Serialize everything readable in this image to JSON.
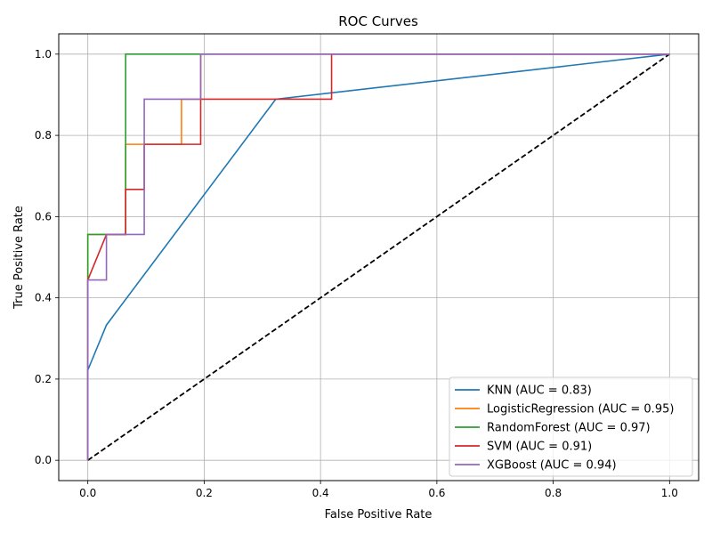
{
  "chart_data": {
    "type": "line",
    "title": "ROC Curves",
    "xlabel": "False Positive Rate",
    "ylabel": "True Positive Rate",
    "xlim": [
      -0.05,
      1.05
    ],
    "ylim": [
      -0.05,
      1.05
    ],
    "xticks": [
      0.0,
      0.2,
      0.4,
      0.6,
      0.8,
      1.0
    ],
    "yticks": [
      0.0,
      0.2,
      0.4,
      0.6,
      0.8,
      1.0
    ],
    "xtick_labels": [
      "0.0",
      "0.2",
      "0.4",
      "0.6",
      "0.8",
      "1.0"
    ],
    "ytick_labels": [
      "0.0",
      "0.2",
      "0.4",
      "0.6",
      "0.8",
      "1.0"
    ],
    "grid": true,
    "legend_position": "lower-right",
    "series": [
      {
        "name": "KNN (AUC = 0.83)",
        "color": "#1f77b4",
        "x": [
          0.0,
          0.0,
          0.032,
          0.323,
          1.0
        ],
        "y": [
          0.0,
          0.222,
          0.333,
          0.889,
          1.0
        ]
      },
      {
        "name": "LogisticRegression (AUC = 0.95)",
        "color": "#ff7f0e",
        "x": [
          0.0,
          0.0,
          0.0,
          0.032,
          0.032,
          0.065,
          0.065,
          0.161,
          0.161,
          0.194,
          0.194,
          1.0
        ],
        "y": [
          0.0,
          0.444,
          0.556,
          0.556,
          0.556,
          0.556,
          0.778,
          0.778,
          0.889,
          0.889,
          1.0,
          1.0
        ]
      },
      {
        "name": "RandomForest (AUC = 0.97)",
        "color": "#2ca02c",
        "x": [
          0.0,
          0.0,
          0.0,
          0.065,
          0.065,
          0.194,
          1.0
        ],
        "y": [
          0.0,
          0.444,
          0.556,
          0.556,
          1.0,
          1.0,
          1.0
        ]
      },
      {
        "name": "SVM (AUC = 0.91)",
        "color": "#d62728",
        "x": [
          0.0,
          0.0,
          0.032,
          0.065,
          0.065,
          0.097,
          0.097,
          0.194,
          0.194,
          0.419,
          0.419,
          1.0
        ],
        "y": [
          0.0,
          0.444,
          0.556,
          0.556,
          0.667,
          0.667,
          0.778,
          0.778,
          0.889,
          0.889,
          1.0,
          1.0
        ]
      },
      {
        "name": "XGBoost (AUC = 0.94)",
        "color": "#9467bd",
        "x": [
          0.0,
          0.0,
          0.032,
          0.032,
          0.097,
          0.097,
          0.194,
          0.194,
          1.0
        ],
        "y": [
          0.0,
          0.444,
          0.444,
          0.556,
          0.556,
          0.889,
          0.889,
          1.0,
          1.0
        ]
      }
    ],
    "reference_line": {
      "name": "chance",
      "color": "#000000",
      "style": "dashed",
      "x": [
        0.0,
        1.0
      ],
      "y": [
        0.0,
        1.0
      ]
    }
  }
}
